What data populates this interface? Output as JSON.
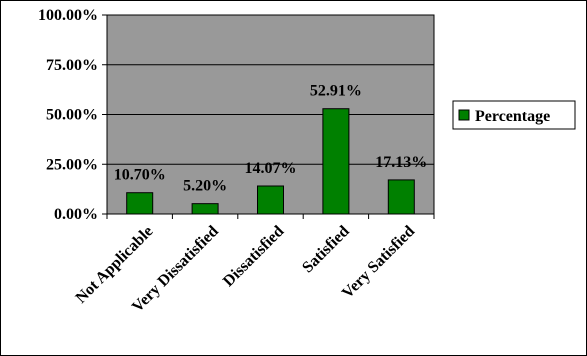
{
  "chart_data": {
    "type": "bar",
    "categories": [
      "Not Applicable",
      "Very Dissatisfied",
      "Dissatisfied",
      "Satisfied",
      "Very Satisfied"
    ],
    "series": [
      {
        "name": "Percentage",
        "values": [
          10.7,
          5.2,
          14.07,
          52.91,
          17.13
        ]
      }
    ],
    "data_labels": [
      "10.70%",
      "5.20%",
      "14.07%",
      "52.91%",
      "17.13%"
    ],
    "y_ticks": [
      "0.00%",
      "25.00%",
      "50.00%",
      "75.00%",
      "100.00%"
    ],
    "ylim": [
      0,
      100
    ],
    "grid": true,
    "legend_position": "right",
    "colors": {
      "plot_background": "#999999",
      "bar_fill": "#008000",
      "bar_stroke": "#000000",
      "gridline": "#000000"
    }
  }
}
